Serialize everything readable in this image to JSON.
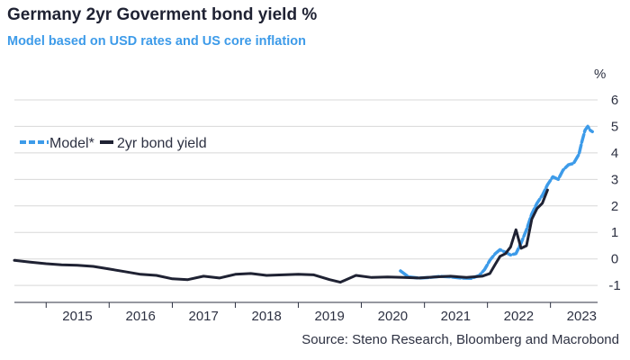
{
  "chart_data": {
    "type": "line",
    "title": "Germany 2yr Goverment bond yield %",
    "subtitle": "Model based on USD rates and US core inflation",
    "source": "Source: Steno Research, Bloomberg and Macrobond",
    "y_unit": "%",
    "xlim": [
      "2014-07-01",
      "2023-10-01"
    ],
    "ylim": [
      -1.3,
      6.1
    ],
    "y_ticks": [
      -1,
      0,
      1,
      2,
      3,
      4,
      5,
      6
    ],
    "x_ticks": [
      "2015",
      "2016",
      "2017",
      "2018",
      "2019",
      "2020",
      "2021",
      "2022",
      "2023"
    ],
    "legend": {
      "position": "top-left"
    },
    "series": [
      {
        "name": "Model*",
        "style": "dashed",
        "color": "#3d9be9",
        "points": [
          [
            "2020-08-15",
            -0.45
          ],
          [
            "2020-10-01",
            -0.68
          ],
          [
            "2020-12-01",
            -0.72
          ],
          [
            "2021-02-01",
            -0.7
          ],
          [
            "2021-04-01",
            -0.66
          ],
          [
            "2021-06-01",
            -0.68
          ],
          [
            "2021-08-01",
            -0.72
          ],
          [
            "2021-10-01",
            -0.73
          ],
          [
            "2021-11-15",
            -0.62
          ],
          [
            "2021-12-15",
            -0.4
          ],
          [
            "2022-01-15",
            -0.05
          ],
          [
            "2022-02-15",
            0.2
          ],
          [
            "2022-03-15",
            0.35
          ],
          [
            "2022-04-15",
            0.25
          ],
          [
            "2022-05-15",
            0.15
          ],
          [
            "2022-06-15",
            0.2
          ],
          [
            "2022-07-15",
            0.6
          ],
          [
            "2022-08-15",
            1.1
          ],
          [
            "2022-09-15",
            1.7
          ],
          [
            "2022-10-15",
            2.1
          ],
          [
            "2022-11-15",
            2.4
          ],
          [
            "2022-12-15",
            2.8
          ],
          [
            "2023-01-15",
            3.1
          ],
          [
            "2023-02-15",
            3.0
          ],
          [
            "2023-03-15",
            3.35
          ],
          [
            "2023-04-15",
            3.55
          ],
          [
            "2023-05-15",
            3.6
          ],
          [
            "2023-06-15",
            3.95
          ],
          [
            "2023-07-01",
            4.4
          ],
          [
            "2023-07-20",
            4.85
          ],
          [
            "2023-08-05",
            5.0
          ],
          [
            "2023-08-20",
            4.85
          ],
          [
            "2023-09-01",
            4.8
          ]
        ]
      },
      {
        "name": "2yr bond yield",
        "style": "solid",
        "color": "#1f2233",
        "points": [
          [
            "2014-07-01",
            -0.05
          ],
          [
            "2014-10-01",
            -0.12
          ],
          [
            "2015-01-01",
            -0.18
          ],
          [
            "2015-04-01",
            -0.22
          ],
          [
            "2015-07-01",
            -0.24
          ],
          [
            "2015-10-01",
            -0.28
          ],
          [
            "2016-01-01",
            -0.38
          ],
          [
            "2016-04-01",
            -0.48
          ],
          [
            "2016-07-01",
            -0.58
          ],
          [
            "2016-10-01",
            -0.62
          ],
          [
            "2017-01-01",
            -0.75
          ],
          [
            "2017-04-01",
            -0.78
          ],
          [
            "2017-07-01",
            -0.65
          ],
          [
            "2017-10-01",
            -0.72
          ],
          [
            "2018-01-01",
            -0.58
          ],
          [
            "2018-04-01",
            -0.55
          ],
          [
            "2018-07-01",
            -0.62
          ],
          [
            "2018-10-01",
            -0.6
          ],
          [
            "2019-01-01",
            -0.58
          ],
          [
            "2019-04-01",
            -0.6
          ],
          [
            "2019-07-01",
            -0.78
          ],
          [
            "2019-09-01",
            -0.88
          ],
          [
            "2019-12-01",
            -0.62
          ],
          [
            "2020-03-01",
            -0.7
          ],
          [
            "2020-06-01",
            -0.68
          ],
          [
            "2020-09-01",
            -0.7
          ],
          [
            "2020-12-01",
            -0.72
          ],
          [
            "2021-03-01",
            -0.68
          ],
          [
            "2021-06-01",
            -0.65
          ],
          [
            "2021-09-01",
            -0.7
          ],
          [
            "2021-12-01",
            -0.65
          ],
          [
            "2022-01-15",
            -0.55
          ],
          [
            "2022-02-15",
            -0.2
          ],
          [
            "2022-03-15",
            0.1
          ],
          [
            "2022-04-15",
            0.2
          ],
          [
            "2022-05-15",
            0.45
          ],
          [
            "2022-06-15",
            1.1
          ],
          [
            "2022-07-15",
            0.4
          ],
          [
            "2022-08-15",
            0.5
          ],
          [
            "2022-09-15",
            1.5
          ],
          [
            "2022-10-15",
            1.9
          ],
          [
            "2022-11-15",
            2.1
          ],
          [
            "2022-12-15",
            2.6
          ]
        ]
      }
    ]
  }
}
